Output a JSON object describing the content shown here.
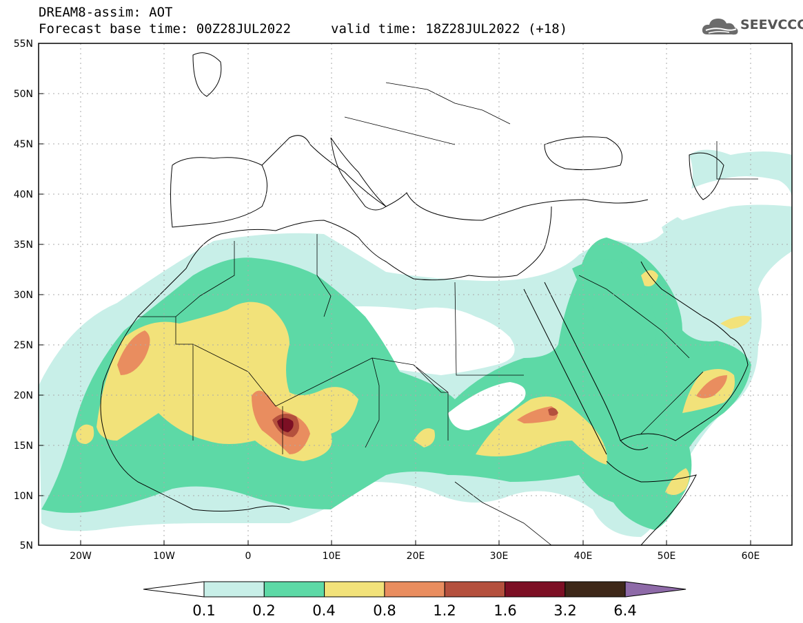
{
  "header": {
    "title": "DREAM8-assim: AOT",
    "base_time": "Forecast base time: 00Z28JUL2022",
    "valid_time": "valid time: 18Z28JUL2022 (+18)"
  },
  "logo": {
    "text": "SEEVCCC",
    "icon": "cloud-logo-icon"
  },
  "map": {
    "lat_labels": [
      "55N",
      "50N",
      "45N",
      "40N",
      "35N",
      "30N",
      "25N",
      "20N",
      "15N",
      "10N",
      "5N"
    ],
    "lon_labels": [
      "20W",
      "10W",
      "0",
      "10E",
      "20E",
      "30E",
      "40E",
      "50E",
      "60E"
    ],
    "extent": {
      "lon_min": -25,
      "lon_max": 65,
      "lat_min": 5,
      "lat_max": 55
    }
  },
  "colorbar": {
    "labels": [
      "0.1",
      "0.2",
      "0.4",
      "0.8",
      "1.2",
      "1.6",
      "3.2",
      "6.4"
    ],
    "colors": [
      "#ffffff",
      "#c8efe8",
      "#5dd9a6",
      "#f2e27a",
      "#e98d5f",
      "#b4503d",
      "#7c0f24",
      "#3d2718",
      "#8e6aa8"
    ]
  }
}
